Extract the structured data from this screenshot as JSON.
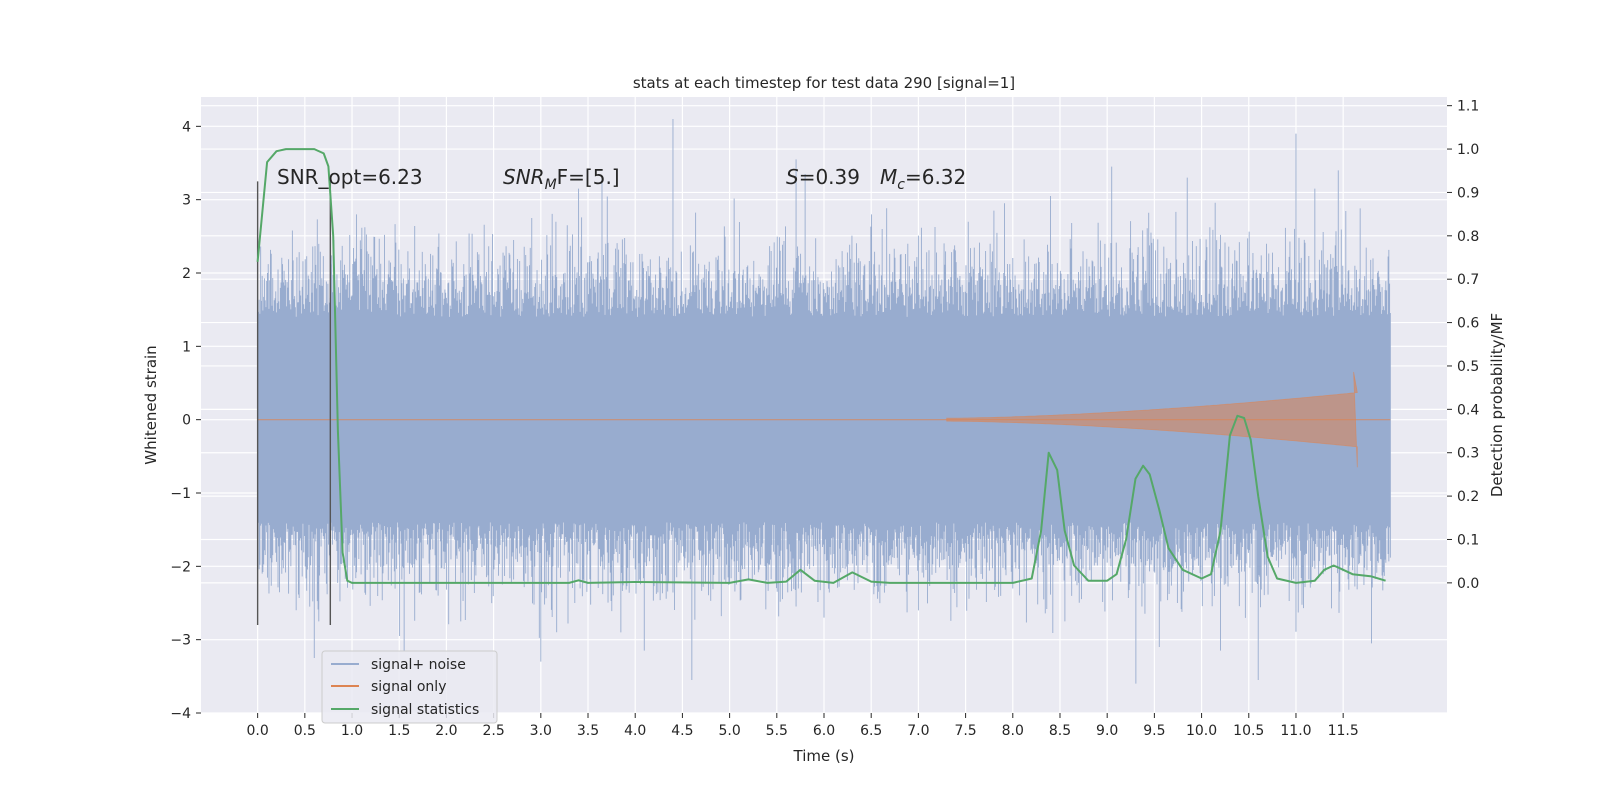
{
  "chart_data": {
    "type": "line",
    "title": "stats at each timestep for test data 290 [signal=1]",
    "xlabel": "Time (s)",
    "ylabel_left": "Whitened strain",
    "ylabel_right": "Detection probability/MF",
    "xlim": [
      -0.6,
      12.6
    ],
    "ylim_left": [
      -4,
      4.4
    ],
    "ylim_right": [
      -0.3,
      1.12
    ],
    "x_ticks": [
      0.0,
      0.5,
      1.0,
      1.5,
      2.0,
      2.5,
      3.0,
      3.5,
      4.0,
      4.5,
      5.0,
      5.5,
      6.0,
      6.5,
      7.0,
      7.5,
      8.0,
      8.5,
      9.0,
      9.5,
      10.0,
      10.5,
      11.0,
      11.5
    ],
    "x_tick_labels": [
      "0.0",
      "0.5",
      "1.0",
      "1.5",
      "2.0",
      "2.5",
      "3.0",
      "3.5",
      "4.0",
      "4.5",
      "5.0",
      "5.5",
      "6.0",
      "6.5",
      "7.0",
      "7.5",
      "8.0",
      "8.5",
      "9.0",
      "9.5",
      "10.0",
      "10.5",
      "11.0",
      "11.5"
    ],
    "y_ticks_left": [
      -4,
      -3,
      -2,
      -1,
      0,
      1,
      2,
      3,
      4
    ],
    "y_tick_labels_left": [
      "−4",
      "−3",
      "−2",
      "−1",
      "0",
      "1",
      "2",
      "3",
      "4"
    ],
    "y_ticks_right": [
      0.0,
      0.1,
      0.2,
      0.3,
      0.4,
      0.5,
      0.6,
      0.7,
      0.8,
      0.9,
      1.0,
      1.1
    ],
    "y_tick_labels_right": [
      "0.0",
      "0.1",
      "0.2",
      "0.3",
      "0.4",
      "0.5",
      "0.6",
      "0.7",
      "0.8",
      "0.9",
      "1.0",
      "1.1"
    ],
    "grid": true,
    "legend_position": "lower-left",
    "annotations": {
      "snr_opt": "SNR_opt=6.23",
      "snr_mf_label": "SNR",
      "snr_mf_sub": "M",
      "snr_mf_rest": "F=[5.]",
      "s_label": "S",
      "s_value": "=0.39",
      "mc_label": "M",
      "mc_sub": "c",
      "mc_value": "=6.32"
    },
    "vertical_lines_x": [
      0.0,
      0.77
    ],
    "series": [
      {
        "name": "signal+ noise",
        "color": "#98accf",
        "axis": "left",
        "duration": [
          0.0,
          12.0
        ],
        "envelope_core": [
          -1.4,
          1.4
        ],
        "peaks": [
          {
            "x": 0.0,
            "y": 1.1
          },
          {
            "x": 0.05,
            "y": -2.1
          },
          {
            "x": 0.1,
            "y": 2.0
          },
          {
            "x": 0.55,
            "y": -2.55
          },
          {
            "x": 0.6,
            "y": -3.25
          },
          {
            "x": 0.65,
            "y": -2.75
          },
          {
            "x": 1.05,
            "y": 2.8
          },
          {
            "x": 1.5,
            "y": -2.95
          },
          {
            "x": 1.55,
            "y": -3.15
          },
          {
            "x": 2.15,
            "y": -2.75
          },
          {
            "x": 2.9,
            "y": 2.75
          },
          {
            "x": 3.0,
            "y": -3.3
          },
          {
            "x": 3.4,
            "y": 3.15
          },
          {
            "x": 3.65,
            "y": 3.3
          },
          {
            "x": 3.85,
            "y": -2.9
          },
          {
            "x": 4.1,
            "y": -3.15
          },
          {
            "x": 4.4,
            "y": 4.1
          },
          {
            "x": 4.6,
            "y": -3.55
          },
          {
            "x": 5.7,
            "y": 3.55
          },
          {
            "x": 5.8,
            "y": 3.35
          },
          {
            "x": 6.0,
            "y": -2.7
          },
          {
            "x": 6.5,
            "y": 2.8
          },
          {
            "x": 7.0,
            "y": -2.6
          },
          {
            "x": 7.8,
            "y": 2.85
          },
          {
            "x": 8.4,
            "y": 3.05
          },
          {
            "x": 8.55,
            "y": -2.75
          },
          {
            "x": 9.05,
            "y": 3.45
          },
          {
            "x": 9.3,
            "y": -3.6
          },
          {
            "x": 9.55,
            "y": -3.1
          },
          {
            "x": 9.85,
            "y": 3.3
          },
          {
            "x": 10.2,
            "y": -3.15
          },
          {
            "x": 10.6,
            "y": -3.55
          },
          {
            "x": 11.0,
            "y": 3.9
          },
          {
            "x": 11.2,
            "y": 3.15
          },
          {
            "x": 11.45,
            "y": 3.4
          },
          {
            "x": 11.8,
            "y": -3.05
          }
        ]
      },
      {
        "name": "signal only",
        "color": "#dd8452",
        "axis": "left",
        "chirp_start": 7.3,
        "chirp_end": 11.65,
        "amplitude_end": 0.35,
        "peak": 0.65
      },
      {
        "name": "signal statistics",
        "color": "#55a868",
        "axis": "right",
        "points": [
          [
            0.0,
            0.74
          ],
          [
            0.1,
            0.97
          ],
          [
            0.2,
            0.995
          ],
          [
            0.3,
            1.0
          ],
          [
            0.6,
            1.0
          ],
          [
            0.7,
            0.99
          ],
          [
            0.75,
            0.96
          ],
          [
            0.8,
            0.8
          ],
          [
            0.85,
            0.35
          ],
          [
            0.9,
            0.07
          ],
          [
            0.95,
            0.005
          ],
          [
            1.0,
            0.0
          ],
          [
            3.3,
            0.0
          ],
          [
            3.4,
            0.006
          ],
          [
            3.5,
            0.0
          ],
          [
            4.0,
            0.002
          ],
          [
            5.0,
            0.0
          ],
          [
            5.2,
            0.008
          ],
          [
            5.4,
            0.0
          ],
          [
            5.6,
            0.003
          ],
          [
            5.75,
            0.03
          ],
          [
            5.9,
            0.005
          ],
          [
            6.1,
            0.0
          ],
          [
            6.3,
            0.024
          ],
          [
            6.5,
            0.003
          ],
          [
            6.7,
            0.0
          ],
          [
            8.0,
            0.0
          ],
          [
            8.2,
            0.01
          ],
          [
            8.3,
            0.12
          ],
          [
            8.38,
            0.3
          ],
          [
            8.47,
            0.26
          ],
          [
            8.55,
            0.12
          ],
          [
            8.65,
            0.04
          ],
          [
            8.8,
            0.005
          ],
          [
            9.0,
            0.005
          ],
          [
            9.1,
            0.02
          ],
          [
            9.2,
            0.1
          ],
          [
            9.3,
            0.24
          ],
          [
            9.38,
            0.27
          ],
          [
            9.45,
            0.25
          ],
          [
            9.55,
            0.17
          ],
          [
            9.65,
            0.08
          ],
          [
            9.8,
            0.03
          ],
          [
            10.0,
            0.01
          ],
          [
            10.1,
            0.02
          ],
          [
            10.2,
            0.12
          ],
          [
            10.3,
            0.34
          ],
          [
            10.38,
            0.385
          ],
          [
            10.45,
            0.38
          ],
          [
            10.52,
            0.33
          ],
          [
            10.6,
            0.2
          ],
          [
            10.7,
            0.06
          ],
          [
            10.8,
            0.01
          ],
          [
            11.0,
            0.0
          ],
          [
            11.2,
            0.005
          ],
          [
            11.3,
            0.03
          ],
          [
            11.4,
            0.04
          ],
          [
            11.5,
            0.03
          ],
          [
            11.6,
            0.02
          ],
          [
            11.8,
            0.015
          ],
          [
            11.95,
            0.005
          ]
        ]
      }
    ]
  }
}
